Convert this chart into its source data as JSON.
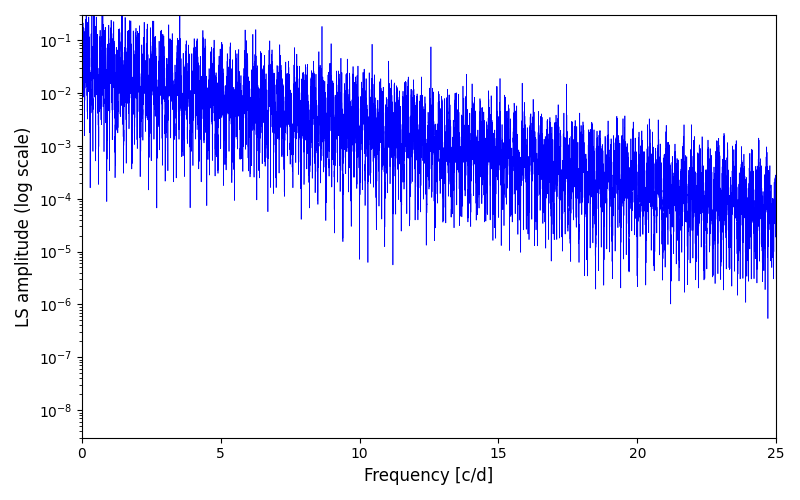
{
  "xlabel": "Frequency [c/d]",
  "ylabel": "LS amplitude (log scale)",
  "xlim": [
    0,
    25
  ],
  "ylim": [
    3e-09,
    0.3
  ],
  "line_color": "#0000ff",
  "line_width": 0.5,
  "background_color": "#ffffff",
  "xlabel_fontsize": 12,
  "ylabel_fontsize": 12,
  "tick_fontsize": 10,
  "figsize": [
    8.0,
    5.0
  ],
  "dpi": 100,
  "n_freq": 15000,
  "freq_max": 25.0,
  "seed": 123
}
